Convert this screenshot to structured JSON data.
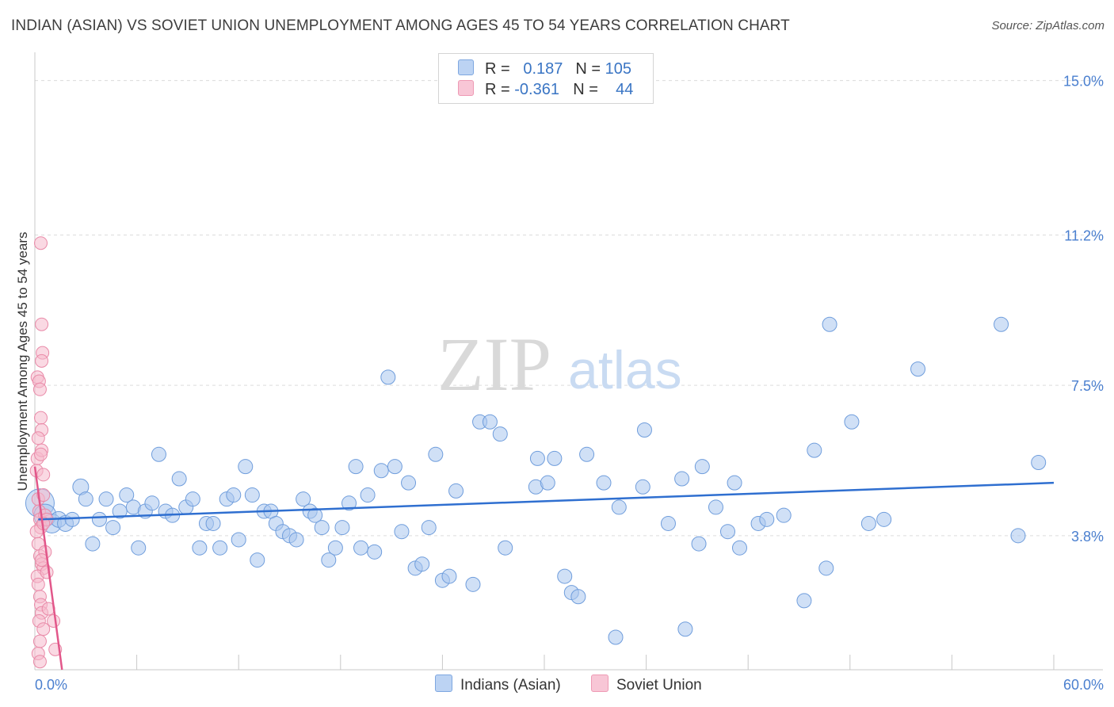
{
  "title": "INDIAN (ASIAN) VS SOVIET UNION UNEMPLOYMENT AMONG AGES 45 TO 54 YEARS CORRELATION CHART",
  "source": "Source: ZipAtlas.com",
  "watermark": {
    "zip": "ZIP",
    "atlas": "atlas"
  },
  "legend": {
    "rows": [
      {
        "r_label": "R =",
        "r_value": "0.187",
        "n_label": "N =",
        "n_value": "105",
        "color": "#bcd3f3"
      },
      {
        "r_label": "R =",
        "r_value": "-0.361",
        "n_label": "N =",
        "n_value": "44",
        "color": "#f8c6d6"
      }
    ]
  },
  "bottom_legend": {
    "series1": "Indians (Asian)",
    "series2": "Soviet Union"
  },
  "chart_data": {
    "type": "scatter",
    "title": "INDIAN (ASIAN) VS SOVIET UNION UNEMPLOYMENT AMONG AGES 45 TO 54 YEARS CORRELATION CHART",
    "xlabel": "",
    "ylabel": "Unemployment Among Ages 45 to 54 years",
    "xlim": [
      0,
      60
    ],
    "ylim": [
      0.5,
      15.5
    ],
    "x_tick_labels": [
      "0.0%",
      "60.0%"
    ],
    "y_ticks": [
      3.8,
      7.5,
      11.2,
      15.0
    ],
    "y_tick_labels": [
      "3.8%",
      "7.5%",
      "11.2%",
      "15.0%"
    ],
    "colors": {
      "blue_fill": "#a9c7ee",
      "blue_stroke": "#6f9ddc",
      "blue_line": "#2f6fd0",
      "pink_fill": "#f6b9cc",
      "pink_stroke": "#e98aa8",
      "pink_line": "#e2578a",
      "axis_text": "#4a7fcf"
    },
    "series": [
      {
        "name": "Indians (Asian)",
        "trend": {
          "x": [
            0.2,
            60
          ],
          "y": [
            4.2,
            5.1
          ]
        },
        "points": [
          [
            0.3,
            4.6,
            18
          ],
          [
            0.6,
            4.3,
            14
          ],
          [
            1.0,
            4.1,
            12
          ],
          [
            1.4,
            4.2,
            10
          ],
          [
            1.8,
            4.1,
            10
          ],
          [
            2.2,
            4.2,
            9
          ],
          [
            2.7,
            5.0,
            10
          ],
          [
            3.0,
            4.7,
            9
          ],
          [
            3.4,
            3.6,
            9
          ],
          [
            3.8,
            4.2,
            9
          ],
          [
            4.2,
            4.7,
            9
          ],
          [
            4.6,
            4.0,
            9
          ],
          [
            5.0,
            4.4,
            9
          ],
          [
            5.4,
            4.8,
            9
          ],
          [
            5.8,
            4.5,
            9
          ],
          [
            6.1,
            3.5,
            9
          ],
          [
            6.5,
            4.4,
            9
          ],
          [
            6.9,
            4.6,
            9
          ],
          [
            7.3,
            5.8,
            9
          ],
          [
            7.7,
            4.4,
            9
          ],
          [
            8.1,
            4.3,
            9
          ],
          [
            8.5,
            5.2,
            9
          ],
          [
            8.9,
            4.5,
            9
          ],
          [
            9.3,
            4.7,
            9
          ],
          [
            9.7,
            3.5,
            9
          ],
          [
            10.1,
            4.1,
            9
          ],
          [
            10.5,
            4.1,
            9
          ],
          [
            10.9,
            3.5,
            9
          ],
          [
            11.3,
            4.7,
            9
          ],
          [
            11.7,
            4.8,
            9
          ],
          [
            12.0,
            3.7,
            9
          ],
          [
            12.4,
            5.5,
            9
          ],
          [
            12.8,
            4.8,
            9
          ],
          [
            13.1,
            3.2,
            9
          ],
          [
            13.5,
            4.4,
            9
          ],
          [
            13.9,
            4.4,
            9
          ],
          [
            14.2,
            4.1,
            9
          ],
          [
            14.6,
            3.9,
            9
          ],
          [
            15.0,
            3.8,
            9
          ],
          [
            15.4,
            3.7,
            9
          ],
          [
            15.8,
            4.7,
            9
          ],
          [
            16.2,
            4.4,
            9
          ],
          [
            16.5,
            4.3,
            9
          ],
          [
            16.9,
            4.0,
            9
          ],
          [
            17.3,
            3.2,
            9
          ],
          [
            17.7,
            3.5,
            9
          ],
          [
            18.1,
            4.0,
            9
          ],
          [
            18.5,
            4.6,
            9
          ],
          [
            18.9,
            5.5,
            9
          ],
          [
            19.2,
            3.5,
            9
          ],
          [
            19.6,
            4.8,
            9
          ],
          [
            20.0,
            3.4,
            9
          ],
          [
            20.4,
            5.4,
            9
          ],
          [
            20.8,
            7.7,
            9
          ],
          [
            21.2,
            5.5,
            9
          ],
          [
            21.6,
            3.9,
            9
          ],
          [
            22.0,
            5.1,
            9
          ],
          [
            22.4,
            3.0,
            9
          ],
          [
            22.8,
            3.1,
            9
          ],
          [
            23.2,
            4.0,
            9
          ],
          [
            23.6,
            5.8,
            9
          ],
          [
            24.0,
            2.7,
            9
          ],
          [
            24.4,
            2.8,
            9
          ],
          [
            24.8,
            4.9,
            9
          ],
          [
            25.8,
            2.6,
            9
          ],
          [
            26.2,
            6.6,
            9
          ],
          [
            26.8,
            6.6,
            9
          ],
          [
            27.4,
            6.3,
            9
          ],
          [
            27.7,
            3.5,
            9
          ],
          [
            29.5,
            5.0,
            9
          ],
          [
            29.6,
            5.7,
            9
          ],
          [
            30.2,
            5.1,
            9
          ],
          [
            30.6,
            5.7,
            9
          ],
          [
            31.2,
            2.8,
            9
          ],
          [
            31.6,
            2.4,
            9
          ],
          [
            32.0,
            2.3,
            9
          ],
          [
            32.5,
            5.8,
            9
          ],
          [
            33.5,
            5.1,
            9
          ],
          [
            34.2,
            1.3,
            9
          ],
          [
            34.4,
            4.5,
            9
          ],
          [
            35.8,
            5.0,
            9
          ],
          [
            35.9,
            6.4,
            9
          ],
          [
            37.3,
            4.1,
            9
          ],
          [
            38.1,
            5.2,
            9
          ],
          [
            38.3,
            1.5,
            9
          ],
          [
            39.1,
            3.6,
            9
          ],
          [
            39.3,
            5.5,
            9
          ],
          [
            40.1,
            4.5,
            9
          ],
          [
            40.8,
            3.9,
            9
          ],
          [
            41.2,
            5.1,
            9
          ],
          [
            41.5,
            3.5,
            9
          ],
          [
            42.6,
            4.1,
            9
          ],
          [
            43.1,
            4.2,
            9
          ],
          [
            44.1,
            4.3,
            9
          ],
          [
            45.3,
            2.2,
            9
          ],
          [
            45.9,
            5.9,
            9
          ],
          [
            46.6,
            3.0,
            9
          ],
          [
            46.8,
            9.0,
            9
          ],
          [
            48.1,
            6.6,
            9
          ],
          [
            49.1,
            4.1,
            9
          ],
          [
            50.0,
            4.2,
            9
          ],
          [
            52.0,
            7.9,
            9
          ],
          [
            56.9,
            9.0,
            9
          ],
          [
            57.9,
            3.8,
            9
          ],
          [
            59.1,
            5.6,
            9
          ]
        ]
      },
      {
        "name": "Soviet Union",
        "trend": {
          "x": [
            0.0,
            1.6
          ],
          "y": [
            5.5,
            0.5
          ]
        },
        "points": [
          [
            0.1,
            5.4,
            8
          ],
          [
            0.15,
            5.7,
            8
          ],
          [
            0.2,
            4.7,
            8
          ],
          [
            0.25,
            4.4,
            8
          ],
          [
            0.3,
            4.2,
            8
          ],
          [
            0.35,
            4.0,
            8
          ],
          [
            0.1,
            3.9,
            8
          ],
          [
            0.2,
            3.6,
            8
          ],
          [
            0.3,
            3.3,
            8
          ],
          [
            0.4,
            3.1,
            8
          ],
          [
            0.5,
            3.0,
            8
          ],
          [
            0.15,
            2.8,
            8
          ],
          [
            0.2,
            2.6,
            8
          ],
          [
            0.3,
            2.3,
            8
          ],
          [
            0.35,
            2.1,
            8
          ],
          [
            0.4,
            1.9,
            8
          ],
          [
            0.25,
            1.7,
            8
          ],
          [
            0.5,
            1.5,
            8
          ],
          [
            0.3,
            1.2,
            8
          ],
          [
            0.2,
            0.9,
            8
          ],
          [
            0.3,
            0.7,
            8
          ],
          [
            0.35,
            11.0,
            8
          ],
          [
            0.4,
            9.0,
            8
          ],
          [
            0.45,
            8.3,
            8
          ],
          [
            0.4,
            8.1,
            8
          ],
          [
            0.15,
            7.7,
            8
          ],
          [
            0.25,
            7.6,
            8
          ],
          [
            0.3,
            7.4,
            8
          ],
          [
            0.35,
            6.7,
            8
          ],
          [
            0.4,
            6.4,
            8
          ],
          [
            0.2,
            6.2,
            8
          ],
          [
            0.4,
            5.9,
            8
          ],
          [
            0.35,
            5.8,
            8
          ],
          [
            0.5,
            5.3,
            8
          ],
          [
            0.5,
            4.8,
            8
          ],
          [
            0.6,
            4.3,
            8
          ],
          [
            0.7,
            4.2,
            8
          ],
          [
            0.5,
            4.1,
            8
          ],
          [
            0.6,
            3.4,
            8
          ],
          [
            0.4,
            3.2,
            8
          ],
          [
            0.7,
            2.9,
            8
          ],
          [
            0.8,
            2.0,
            8
          ],
          [
            1.1,
            1.7,
            8
          ],
          [
            1.2,
            1.0,
            8
          ]
        ]
      }
    ]
  }
}
